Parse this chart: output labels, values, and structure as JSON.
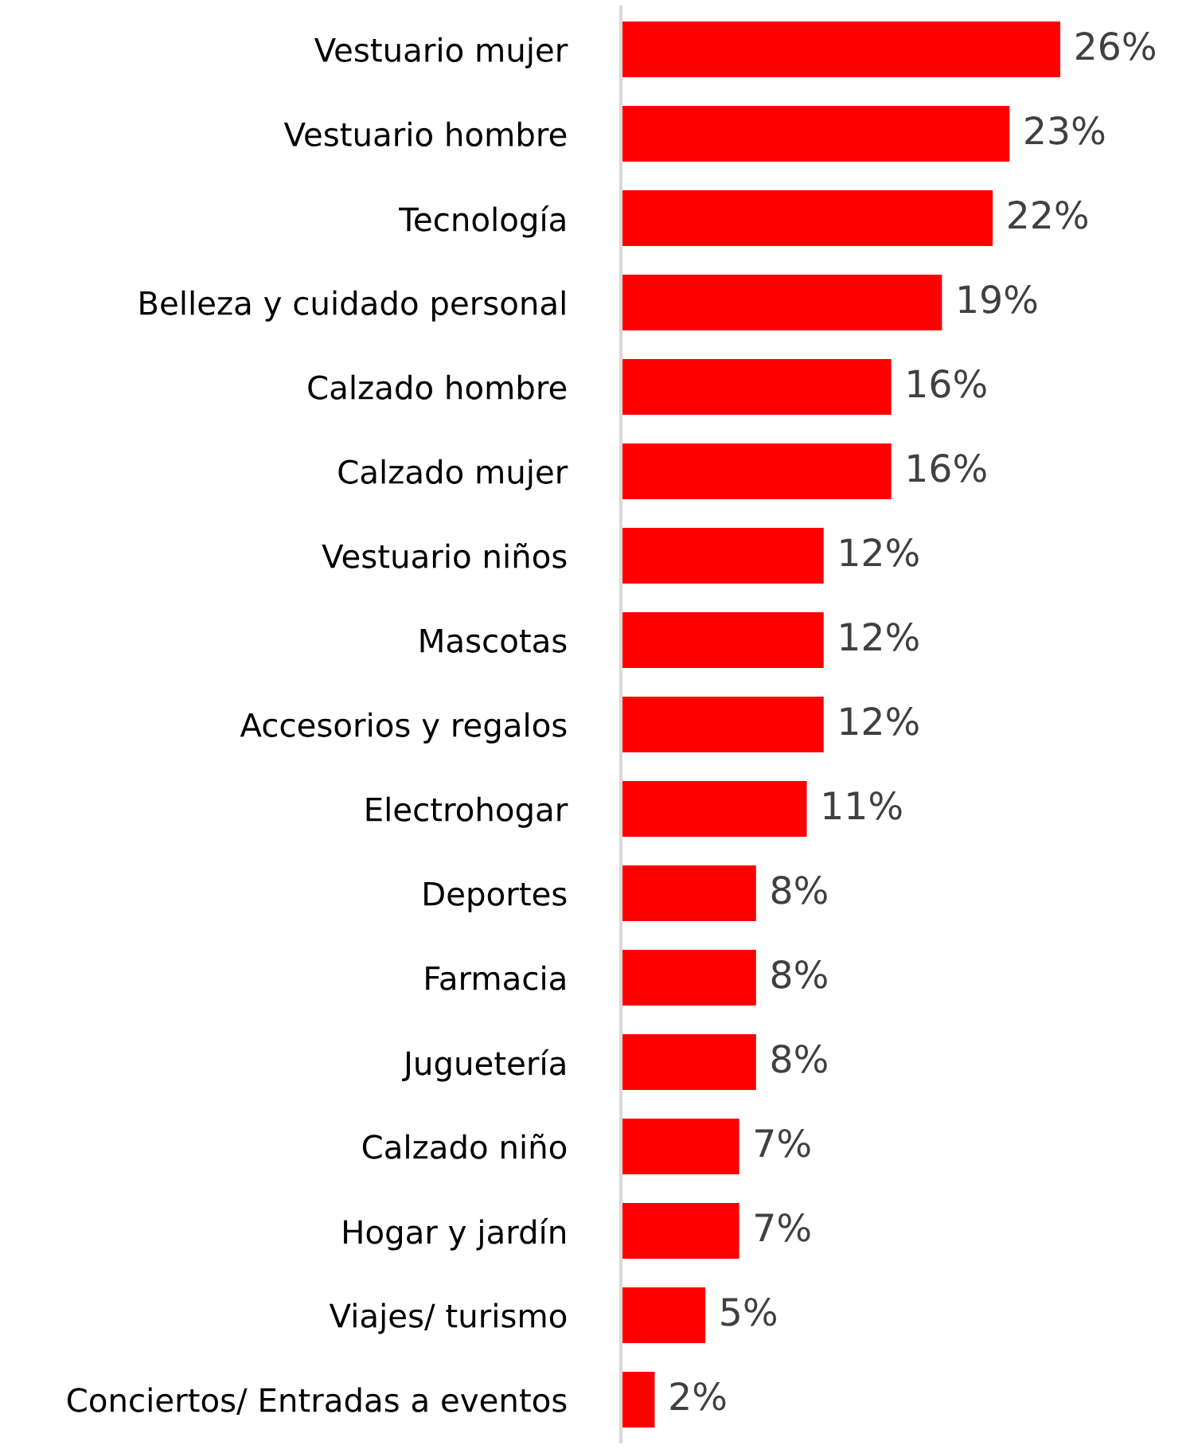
{
  "chart_data": {
    "type": "bar",
    "orientation": "horizontal",
    "categories": [
      "Vestuario mujer",
      "Vestuario hombre",
      "Tecnología",
      "Belleza y cuidado personal",
      "Calzado hombre",
      "Calzado mujer",
      "Vestuario niños",
      "Mascotas",
      "Accesorios y regalos",
      "Electrohogar",
      "Deportes",
      "Farmacia",
      "Juguetería",
      "Calzado niño",
      "Hogar y jardín",
      "Viajes/ turismo",
      "Conciertos/ Entradas a eventos"
    ],
    "values": [
      26,
      23,
      22,
      19,
      16,
      16,
      12,
      12,
      12,
      11,
      8,
      8,
      8,
      7,
      7,
      5,
      2
    ],
    "value_labels": [
      "26%",
      "23%",
      "22%",
      "19%",
      "16%",
      "16%",
      "12%",
      "12%",
      "12%",
      "11%",
      "8%",
      "8%",
      "8%",
      "7%",
      "7%",
      "5%",
      "2%"
    ],
    "color": "#ff0000",
    "grid": false,
    "legend": false
  }
}
